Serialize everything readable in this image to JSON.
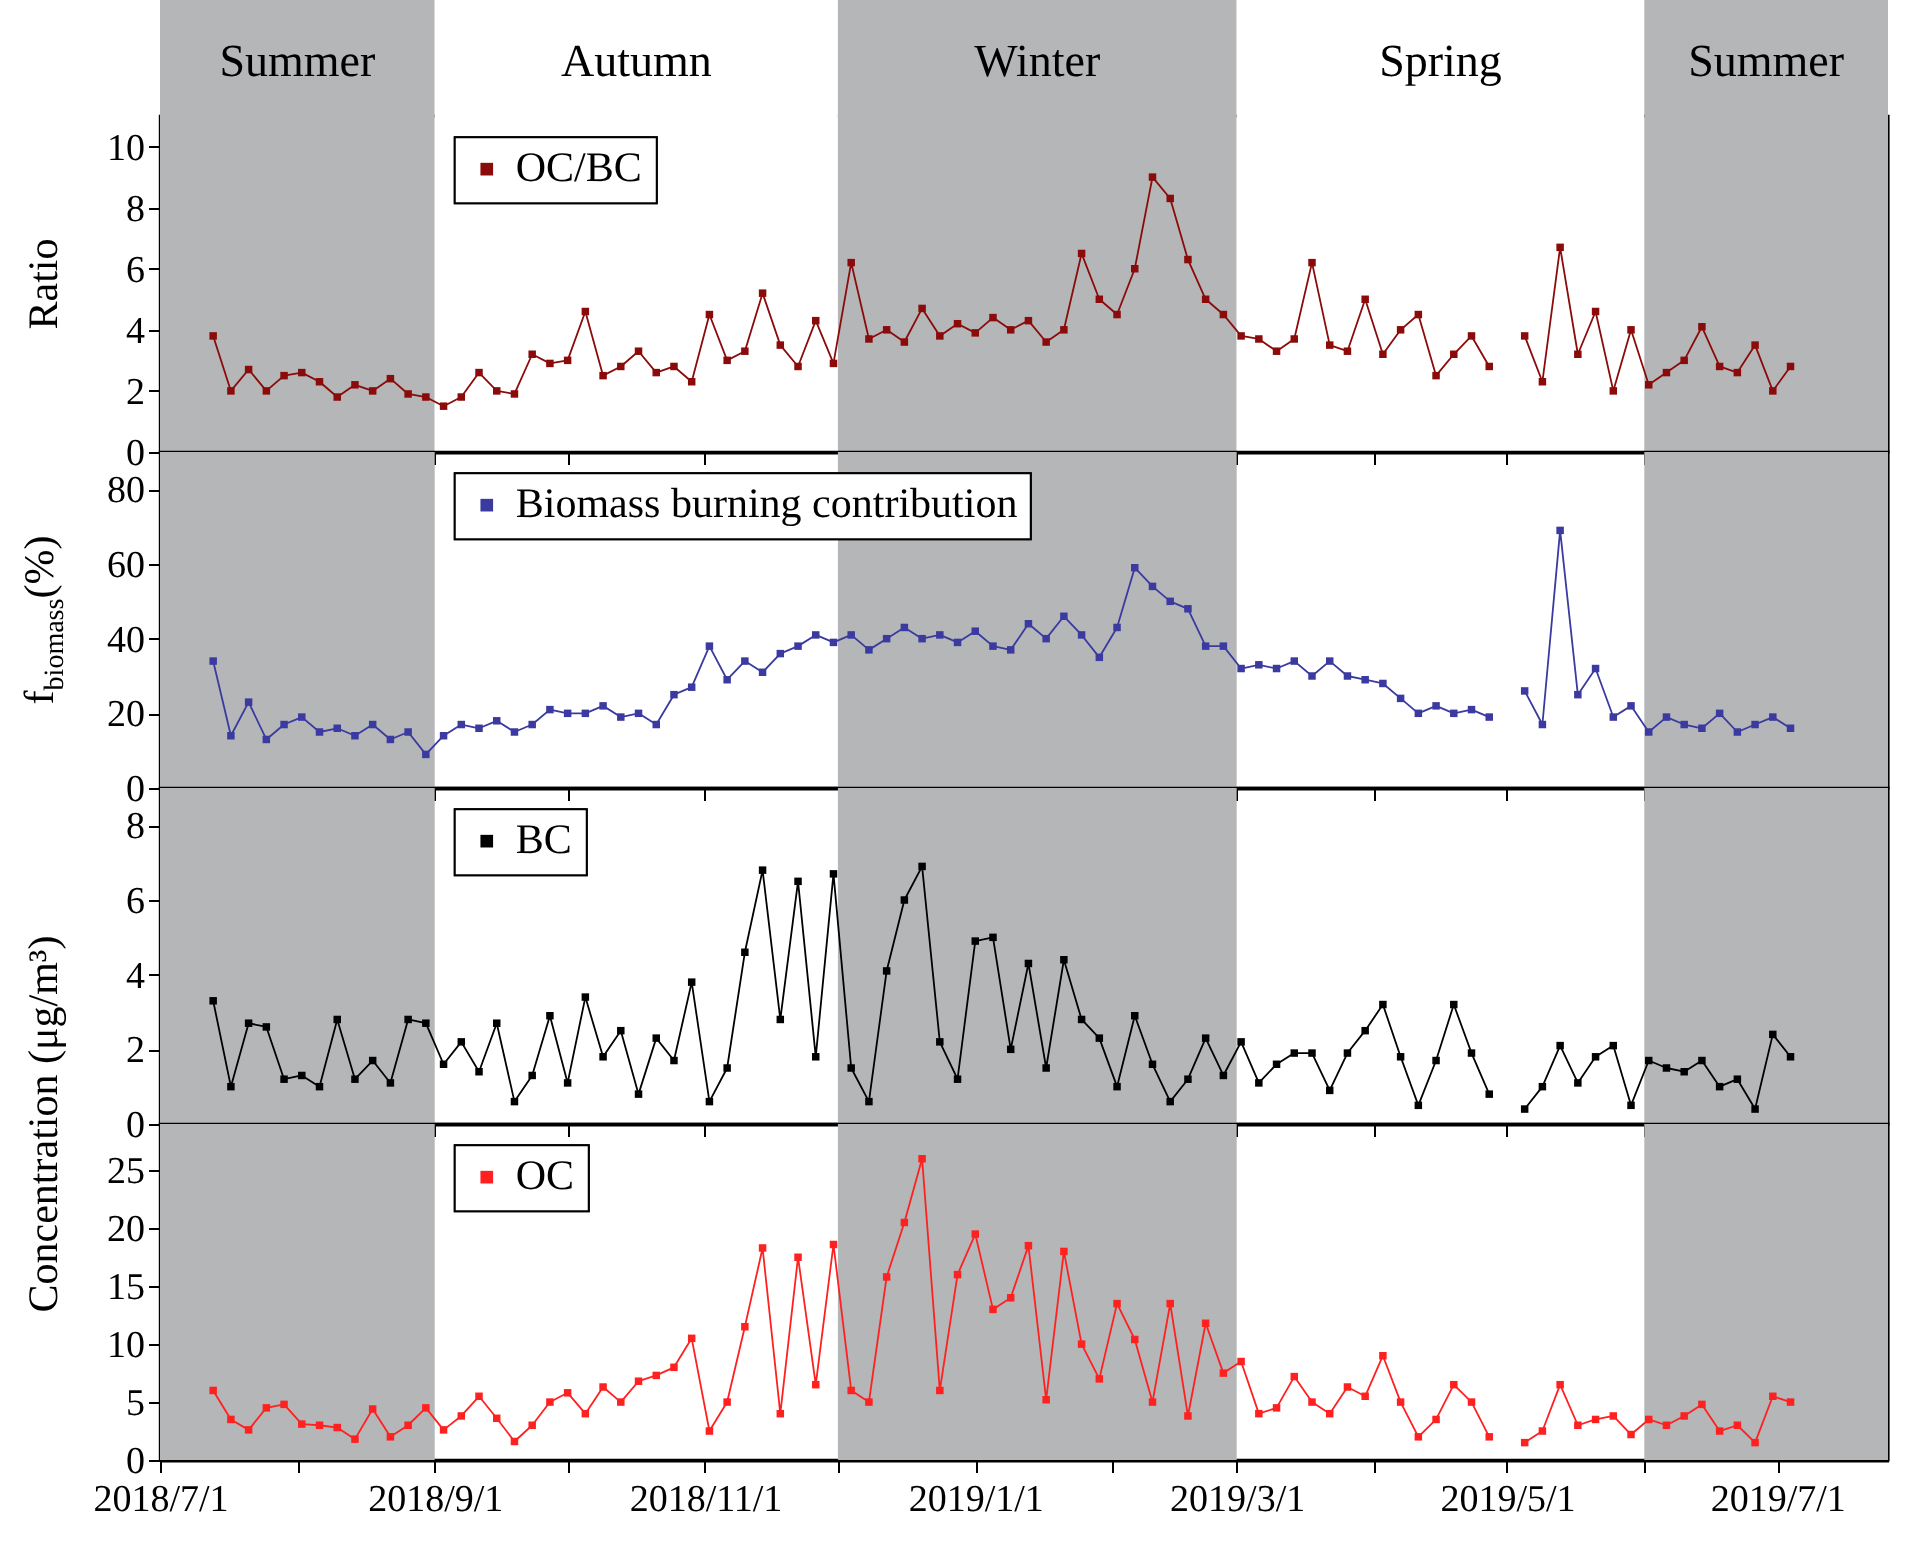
{
  "chart_data": [
    {
      "type": "line",
      "ylabel": "Ratio",
      "x": [
        "2018-07-13",
        "2018-07-17",
        "2018-07-21",
        "2018-07-25",
        "2018-07-29",
        "2018-08-02",
        "2018-08-06",
        "2018-08-10",
        "2018-08-14",
        "2018-08-18",
        "2018-08-22",
        "2018-08-26",
        "2018-08-30",
        "2018-09-03",
        "2018-09-07",
        "2018-09-11",
        "2018-09-15",
        "2018-09-19",
        "2018-09-23",
        "2018-09-27",
        "2018-10-01",
        "2018-10-05",
        "2018-10-09",
        "2018-10-13",
        "2018-10-17",
        "2018-10-21",
        "2018-10-25",
        "2018-10-29",
        "2018-11-02",
        "2018-11-06",
        "2018-11-10",
        "2018-11-14",
        "2018-11-18",
        "2018-11-22",
        "2018-11-26",
        "2018-11-30",
        "2018-12-04",
        "2018-12-08",
        "2018-12-12",
        "2018-12-16",
        "2018-12-20",
        "2018-12-24",
        "2018-12-28",
        "2019-01-01",
        "2019-01-05",
        "2019-01-09",
        "2019-01-13",
        "2019-01-17",
        "2019-01-21",
        "2019-01-25",
        "2019-01-29",
        "2019-02-02",
        "2019-02-06",
        "2019-02-10",
        "2019-02-14",
        "2019-02-18",
        "2019-02-22",
        "2019-02-26",
        "2019-03-02",
        "2019-03-06",
        "2019-03-10",
        "2019-03-14",
        "2019-03-18",
        "2019-03-22",
        "2019-03-26",
        "2019-03-30",
        "2019-04-03",
        "2019-04-07",
        "2019-04-11",
        "2019-04-15",
        "2019-04-19",
        "2019-04-23",
        "2019-04-27",
        "2019-05-01",
        "2019-05-05",
        "2019-05-09",
        "2019-05-13",
        "2019-05-17",
        "2019-05-21",
        "2019-05-25",
        "2019-05-29",
        "2019-06-02",
        "2019-06-06",
        "2019-06-10",
        "2019-06-14",
        "2019-06-18",
        "2019-06-22",
        "2019-06-26",
        "2019-06-30",
        "2019-07-04"
      ],
      "series": [
        {
          "name": "OC/BC",
          "color": "#8b0a0a",
          "values": [
            3.8,
            2.0,
            2.7,
            2.0,
            2.5,
            2.6,
            2.3,
            1.8,
            2.2,
            2.0,
            2.4,
            1.9,
            1.8,
            1.5,
            1.8,
            2.6,
            2.0,
            1.9,
            3.2,
            2.9,
            3.0,
            4.6,
            2.5,
            2.8,
            3.3,
            2.6,
            2.8,
            2.3,
            4.5,
            3.0,
            3.3,
            5.2,
            3.5,
            2.8,
            4.3,
            2.9,
            6.2,
            3.7,
            4.0,
            3.6,
            4.7,
            3.8,
            4.2,
            3.9,
            4.4,
            4.0,
            4.3,
            3.6,
            4.0,
            6.5,
            5.0,
            4.5,
            6.0,
            9.0,
            8.3,
            6.3,
            5.0,
            4.5,
            3.8,
            3.7,
            3.3,
            3.7,
            6.2,
            3.5,
            3.3,
            5.0,
            3.2,
            4.0,
            4.5,
            2.5,
            3.2,
            3.8,
            2.8,
            null,
            3.8,
            2.3,
            6.7,
            3.2,
            4.6,
            2.0,
            4.0,
            2.2,
            2.6,
            3.0,
            4.1,
            2.8,
            2.6,
            3.5,
            2.0,
            2.8
          ]
        }
      ],
      "xlim": [
        "2018-07-01",
        "2019-07-26"
      ],
      "xticks": [
        {
          "value": "2018-07-01",
          "label": null
        },
        {
          "value": "2018-08-01",
          "label": null
        },
        {
          "value": "2018-09-01",
          "label": null
        },
        {
          "value": "2018-10-01",
          "label": null
        },
        {
          "value": "2018-11-01",
          "label": null
        },
        {
          "value": "2018-12-01",
          "label": null
        },
        {
          "value": "2019-01-01",
          "label": null
        },
        {
          "value": "2019-02-01",
          "label": null
        },
        {
          "value": "2019-03-01",
          "label": null
        },
        {
          "value": "2019-04-01",
          "label": null
        },
        {
          "value": "2019-05-01",
          "label": null
        },
        {
          "value": "2019-06-01",
          "label": null
        },
        {
          "value": "2019-07-01",
          "label": null
        }
      ],
      "ylim": [
        0,
        11
      ],
      "yticks": [
        0,
        2,
        4,
        6,
        8,
        10
      ],
      "bands": [
        {
          "axis": "x",
          "from": "2018-07-01",
          "to": "2018-09-01",
          "label": "Summer",
          "color": "#b4b6b8"
        },
        {
          "axis": "x",
          "from": "2018-09-01",
          "to": "2018-12-01",
          "label": "Autumn",
          "color": "#ffffff"
        },
        {
          "axis": "x",
          "from": "2018-12-01",
          "to": "2019-03-01",
          "label": "Winter",
          "color": "#b4b6b8"
        },
        {
          "axis": "x",
          "from": "2019-03-01",
          "to": "2019-06-01",
          "label": "Spring",
          "color": "#ffffff"
        },
        {
          "axis": "x",
          "from": "2019-06-01",
          "to": "2019-07-26",
          "label": "Summer",
          "color": "#b4b6b8"
        }
      ],
      "legend": "top left",
      "marker": "square",
      "line_style": "solid",
      "tick_labels": "y"
    },
    {
      "type": "line",
      "ylabel": "f$_{biomass}$(%)",
      "x": [
        "2018-07-13",
        "2018-07-17",
        "2018-07-21",
        "2018-07-25",
        "2018-07-29",
        "2018-08-02",
        "2018-08-06",
        "2018-08-10",
        "2018-08-14",
        "2018-08-18",
        "2018-08-22",
        "2018-08-26",
        "2018-08-30",
        "2018-09-03",
        "2018-09-07",
        "2018-09-11",
        "2018-09-15",
        "2018-09-19",
        "2018-09-23",
        "2018-09-27",
        "2018-10-01",
        "2018-10-05",
        "2018-10-09",
        "2018-10-13",
        "2018-10-17",
        "2018-10-21",
        "2018-10-25",
        "2018-10-29",
        "2018-11-02",
        "2018-11-06",
        "2018-11-10",
        "2018-11-14",
        "2018-11-18",
        "2018-11-22",
        "2018-11-26",
        "2018-11-30",
        "2018-12-04",
        "2018-12-08",
        "2018-12-12",
        "2018-12-16",
        "2018-12-20",
        "2018-12-24",
        "2018-12-28",
        "2019-01-01",
        "2019-01-05",
        "2019-01-09",
        "2019-01-13",
        "2019-01-17",
        "2019-01-21",
        "2019-01-25",
        "2019-01-29",
        "2019-02-02",
        "2019-02-06",
        "2019-02-10",
        "2019-02-14",
        "2019-02-18",
        "2019-02-22",
        "2019-02-26",
        "2019-03-02",
        "2019-03-06",
        "2019-03-10",
        "2019-03-14",
        "2019-03-18",
        "2019-03-22",
        "2019-03-26",
        "2019-03-30",
        "2019-04-03",
        "2019-04-07",
        "2019-04-11",
        "2019-04-15",
        "2019-04-19",
        "2019-04-23",
        "2019-04-27",
        "2019-05-01",
        "2019-05-05",
        "2019-05-09",
        "2019-05-13",
        "2019-05-17",
        "2019-05-21",
        "2019-05-25",
        "2019-05-29",
        "2019-06-02",
        "2019-06-06",
        "2019-06-10",
        "2019-06-14",
        "2019-06-18",
        "2019-06-22",
        "2019-06-26",
        "2019-06-30",
        "2019-07-04"
      ],
      "series": [
        {
          "name": "Biomass burning contribution",
          "color": "#3a3aa0",
          "values": [
            34,
            14,
            23,
            13,
            17,
            19,
            15,
            16,
            14,
            17,
            13,
            15,
            9,
            14,
            17,
            16,
            18,
            15,
            17,
            21,
            20,
            20,
            22,
            19,
            20,
            17,
            25,
            27,
            38,
            29,
            34,
            31,
            36,
            38,
            41,
            39,
            41,
            37,
            40,
            43,
            40,
            41,
            39,
            42,
            38,
            37,
            44,
            40,
            46,
            41,
            35,
            43,
            59,
            54,
            50,
            48,
            38,
            38,
            32,
            33,
            32,
            34,
            30,
            34,
            30,
            29,
            28,
            24,
            20,
            22,
            20,
            21,
            19,
            null,
            26,
            17,
            69,
            25,
            32,
            19,
            22,
            15,
            19,
            17,
            16,
            20,
            15,
            17,
            19,
            16
          ]
        }
      ],
      "xlim": [
        "2018-07-01",
        "2019-07-26"
      ],
      "xticks": [
        {
          "value": "2018-07-01",
          "label": null
        },
        {
          "value": "2018-08-01",
          "label": null
        },
        {
          "value": "2018-09-01",
          "label": null
        },
        {
          "value": "2018-10-01",
          "label": null
        },
        {
          "value": "2018-11-01",
          "label": null
        },
        {
          "value": "2018-12-01",
          "label": null
        },
        {
          "value": "2019-01-01",
          "label": null
        },
        {
          "value": "2019-02-01",
          "label": null
        },
        {
          "value": "2019-03-01",
          "label": null
        },
        {
          "value": "2019-04-01",
          "label": null
        },
        {
          "value": "2019-05-01",
          "label": null
        },
        {
          "value": "2019-06-01",
          "label": null
        },
        {
          "value": "2019-07-01",
          "label": null
        }
      ],
      "ylim": [
        0,
        90
      ],
      "yticks": [
        0,
        20,
        40,
        60,
        80
      ],
      "bands": [
        {
          "axis": "x",
          "from": "2018-07-01",
          "to": "2018-09-01",
          "color": "#b4b6b8"
        },
        {
          "axis": "x",
          "from": "2018-12-01",
          "to": "2019-03-01",
          "color": "#b4b6b8"
        },
        {
          "axis": "x",
          "from": "2019-06-01",
          "to": "2019-07-26",
          "color": "#b4b6b8"
        }
      ],
      "legend": "top left",
      "marker": "square",
      "line_style": "solid",
      "tick_labels": "y"
    },
    {
      "type": "line",
      "ylabel": "Concentration (μg/m³)",
      "x": [
        "2018-07-13",
        "2018-07-17",
        "2018-07-21",
        "2018-07-25",
        "2018-07-29",
        "2018-08-02",
        "2018-08-06",
        "2018-08-10",
        "2018-08-14",
        "2018-08-18",
        "2018-08-22",
        "2018-08-26",
        "2018-08-30",
        "2018-09-03",
        "2018-09-07",
        "2018-09-11",
        "2018-09-15",
        "2018-09-19",
        "2018-09-23",
        "2018-09-27",
        "2018-10-01",
        "2018-10-05",
        "2018-10-09",
        "2018-10-13",
        "2018-10-17",
        "2018-10-21",
        "2018-10-25",
        "2018-10-29",
        "2018-11-02",
        "2018-11-06",
        "2018-11-10",
        "2018-11-14",
        "2018-11-18",
        "2018-11-22",
        "2018-11-26",
        "2018-11-30",
        "2018-12-04",
        "2018-12-08",
        "2018-12-12",
        "2018-12-16",
        "2018-12-20",
        "2018-12-24",
        "2018-12-28",
        "2019-01-01",
        "2019-01-05",
        "2019-01-09",
        "2019-01-13",
        "2019-01-17",
        "2019-01-21",
        "2019-01-25",
        "2019-01-29",
        "2019-02-02",
        "2019-02-06",
        "2019-02-10",
        "2019-02-14",
        "2019-02-18",
        "2019-02-22",
        "2019-02-26",
        "2019-03-02",
        "2019-03-06",
        "2019-03-10",
        "2019-03-14",
        "2019-03-18",
        "2019-03-22",
        "2019-03-26",
        "2019-03-30",
        "2019-04-03",
        "2019-04-07",
        "2019-04-11",
        "2019-04-15",
        "2019-04-19",
        "2019-04-23",
        "2019-04-27",
        "2019-05-01",
        "2019-05-05",
        "2019-05-09",
        "2019-05-13",
        "2019-05-17",
        "2019-05-21",
        "2019-05-25",
        "2019-05-29",
        "2019-06-02",
        "2019-06-06",
        "2019-06-10",
        "2019-06-14",
        "2019-06-18",
        "2019-06-22",
        "2019-06-26",
        "2019-06-30",
        "2019-07-04"
      ],
      "series": [
        {
          "name": "BC",
          "color": "#000000",
          "values": [
            3.3,
            1.0,
            2.7,
            2.6,
            1.2,
            1.3,
            1.0,
            2.8,
            1.2,
            1.7,
            1.1,
            2.8,
            2.7,
            1.6,
            2.2,
            1.4,
            2.7,
            0.6,
            1.3,
            2.9,
            1.1,
            3.4,
            1.8,
            2.5,
            0.8,
            2.3,
            1.7,
            3.8,
            0.6,
            1.5,
            4.6,
            6.8,
            2.8,
            6.5,
            1.8,
            6.7,
            1.5,
            0.6,
            4.1,
            6.0,
            6.9,
            2.2,
            1.2,
            4.9,
            5.0,
            2.0,
            4.3,
            1.5,
            4.4,
            2.8,
            2.3,
            1.0,
            2.9,
            1.6,
            0.6,
            1.2,
            2.3,
            1.3,
            2.2,
            1.1,
            1.6,
            1.9,
            1.9,
            0.9,
            1.9,
            2.5,
            3.2,
            1.8,
            0.5,
            1.7,
            3.2,
            1.9,
            0.8,
            null,
            0.4,
            1.0,
            2.1,
            1.1,
            1.8,
            2.1,
            0.5,
            1.7,
            1.5,
            1.4,
            1.7,
            1.0,
            1.2,
            0.4,
            2.4,
            1.8
          ]
        }
      ],
      "xlim": [
        "2018-07-01",
        "2019-07-26"
      ],
      "xticks": [
        {
          "value": "2018-07-01",
          "label": null
        },
        {
          "value": "2018-08-01",
          "label": null
        },
        {
          "value": "2018-09-01",
          "label": null
        },
        {
          "value": "2018-10-01",
          "label": null
        },
        {
          "value": "2018-11-01",
          "label": null
        },
        {
          "value": "2018-12-01",
          "label": null
        },
        {
          "value": "2019-01-01",
          "label": null
        },
        {
          "value": "2019-02-01",
          "label": null
        },
        {
          "value": "2019-03-01",
          "label": null
        },
        {
          "value": "2019-04-01",
          "label": null
        },
        {
          "value": "2019-05-01",
          "label": null
        },
        {
          "value": "2019-06-01",
          "label": null
        },
        {
          "value": "2019-07-01",
          "label": null
        }
      ],
      "ylim": [
        0,
        9
      ],
      "yticks": [
        0,
        2,
        4,
        6,
        8
      ],
      "bands": [
        {
          "axis": "x",
          "from": "2018-07-01",
          "to": "2018-09-01",
          "color": "#b4b6b8"
        },
        {
          "axis": "x",
          "from": "2018-12-01",
          "to": "2019-03-01",
          "color": "#b4b6b8"
        },
        {
          "axis": "x",
          "from": "2019-06-01",
          "to": "2019-07-26",
          "color": "#b4b6b8"
        }
      ],
      "legend": "top left",
      "marker": "square",
      "line_style": "solid",
      "tick_labels": "y"
    },
    {
      "type": "line",
      "x": [
        "2018-07-13",
        "2018-07-17",
        "2018-07-21",
        "2018-07-25",
        "2018-07-29",
        "2018-08-02",
        "2018-08-06",
        "2018-08-10",
        "2018-08-14",
        "2018-08-18",
        "2018-08-22",
        "2018-08-26",
        "2018-08-30",
        "2018-09-03",
        "2018-09-07",
        "2018-09-11",
        "2018-09-15",
        "2018-09-19",
        "2018-09-23",
        "2018-09-27",
        "2018-10-01",
        "2018-10-05",
        "2018-10-09",
        "2018-10-13",
        "2018-10-17",
        "2018-10-21",
        "2018-10-25",
        "2018-10-29",
        "2018-11-02",
        "2018-11-06",
        "2018-11-10",
        "2018-11-14",
        "2018-11-18",
        "2018-11-22",
        "2018-11-26",
        "2018-11-30",
        "2018-12-04",
        "2018-12-08",
        "2018-12-12",
        "2018-12-16",
        "2018-12-20",
        "2018-12-24",
        "2018-12-28",
        "2019-01-01",
        "2019-01-05",
        "2019-01-09",
        "2019-01-13",
        "2019-01-17",
        "2019-01-21",
        "2019-01-25",
        "2019-01-29",
        "2019-02-02",
        "2019-02-06",
        "2019-02-10",
        "2019-02-14",
        "2019-02-18",
        "2019-02-22",
        "2019-02-26",
        "2019-03-02",
        "2019-03-06",
        "2019-03-10",
        "2019-03-14",
        "2019-03-18",
        "2019-03-22",
        "2019-03-26",
        "2019-03-30",
        "2019-04-03",
        "2019-04-07",
        "2019-04-11",
        "2019-04-15",
        "2019-04-19",
        "2019-04-23",
        "2019-04-27",
        "2019-05-01",
        "2019-05-05",
        "2019-05-09",
        "2019-05-13",
        "2019-05-17",
        "2019-05-21",
        "2019-05-25",
        "2019-05-29",
        "2019-06-02",
        "2019-06-06",
        "2019-06-10",
        "2019-06-14",
        "2019-06-18",
        "2019-06-22",
        "2019-06-26",
        "2019-06-30",
        "2019-07-04"
      ],
      "series": [
        {
          "name": "OC",
          "color": "#ff2020",
          "values": [
            6.0,
            3.5,
            2.6,
            4.5,
            4.8,
            3.1,
            3.0,
            2.8,
            1.8,
            4.4,
            2.0,
            3.0,
            4.5,
            2.6,
            3.8,
            5.5,
            3.6,
            1.6,
            3.0,
            5.0,
            5.8,
            4.0,
            6.3,
            5.0,
            6.8,
            7.3,
            8.0,
            10.5,
            2.5,
            5.0,
            11.5,
            18.3,
            4.0,
            17.5,
            6.5,
            18.6,
            6.0,
            5.0,
            15.8,
            20.5,
            26.0,
            6.0,
            16.0,
            19.5,
            13.0,
            14.0,
            18.5,
            5.2,
            18.0,
            10.0,
            7.0,
            13.5,
            10.4,
            5.0,
            13.5,
            3.8,
            11.8,
            7.5,
            8.5,
            4.0,
            4.5,
            7.2,
            5.0,
            4.0,
            6.3,
            5.5,
            9.0,
            5.0,
            2.0,
            3.5,
            6.5,
            5.0,
            2.0,
            null,
            1.5,
            2.5,
            6.5,
            3.0,
            3.5,
            3.8,
            2.2,
            3.5,
            3.0,
            3.8,
            4.8,
            2.5,
            3.0,
            1.5,
            5.5,
            5.0
          ]
        }
      ],
      "xlim": [
        "2018-07-01",
        "2019-07-26"
      ],
      "xticks": [
        {
          "value": "2018-07-01",
          "label": "2018/7/1"
        },
        {
          "value": "2018-08-01",
          "label": null
        },
        {
          "value": "2018-09-01",
          "label": "2018/9/1"
        },
        {
          "value": "2018-10-01",
          "label": null
        },
        {
          "value": "2018-11-01",
          "label": "2018/11/1"
        },
        {
          "value": "2018-12-01",
          "label": null
        },
        {
          "value": "2019-01-01",
          "label": "2019/1/1"
        },
        {
          "value": "2019-02-01",
          "label": null
        },
        {
          "value": "2019-03-01",
          "label": "2019/3/1"
        },
        {
          "value": "2019-04-01",
          "label": null
        },
        {
          "value": "2019-05-01",
          "label": "2019/5/1"
        },
        {
          "value": "2019-06-01",
          "label": null
        },
        {
          "value": "2019-07-01",
          "label": "2019/7/1"
        }
      ],
      "ylim": [
        0,
        29
      ],
      "yticks": [
        0,
        5,
        10,
        15,
        20,
        25
      ],
      "bands": [
        {
          "axis": "x",
          "from": "2018-07-01",
          "to": "2018-09-01",
          "color": "#b4b6b8"
        },
        {
          "axis": "x",
          "from": "2018-12-01",
          "to": "2019-03-01",
          "color": "#b4b6b8"
        },
        {
          "axis": "x",
          "from": "2019-06-01",
          "to": "2019-07-26",
          "color": "#b4b6b8"
        }
      ],
      "legend": "top left",
      "marker": "square",
      "line_style": "solid"
    }
  ]
}
